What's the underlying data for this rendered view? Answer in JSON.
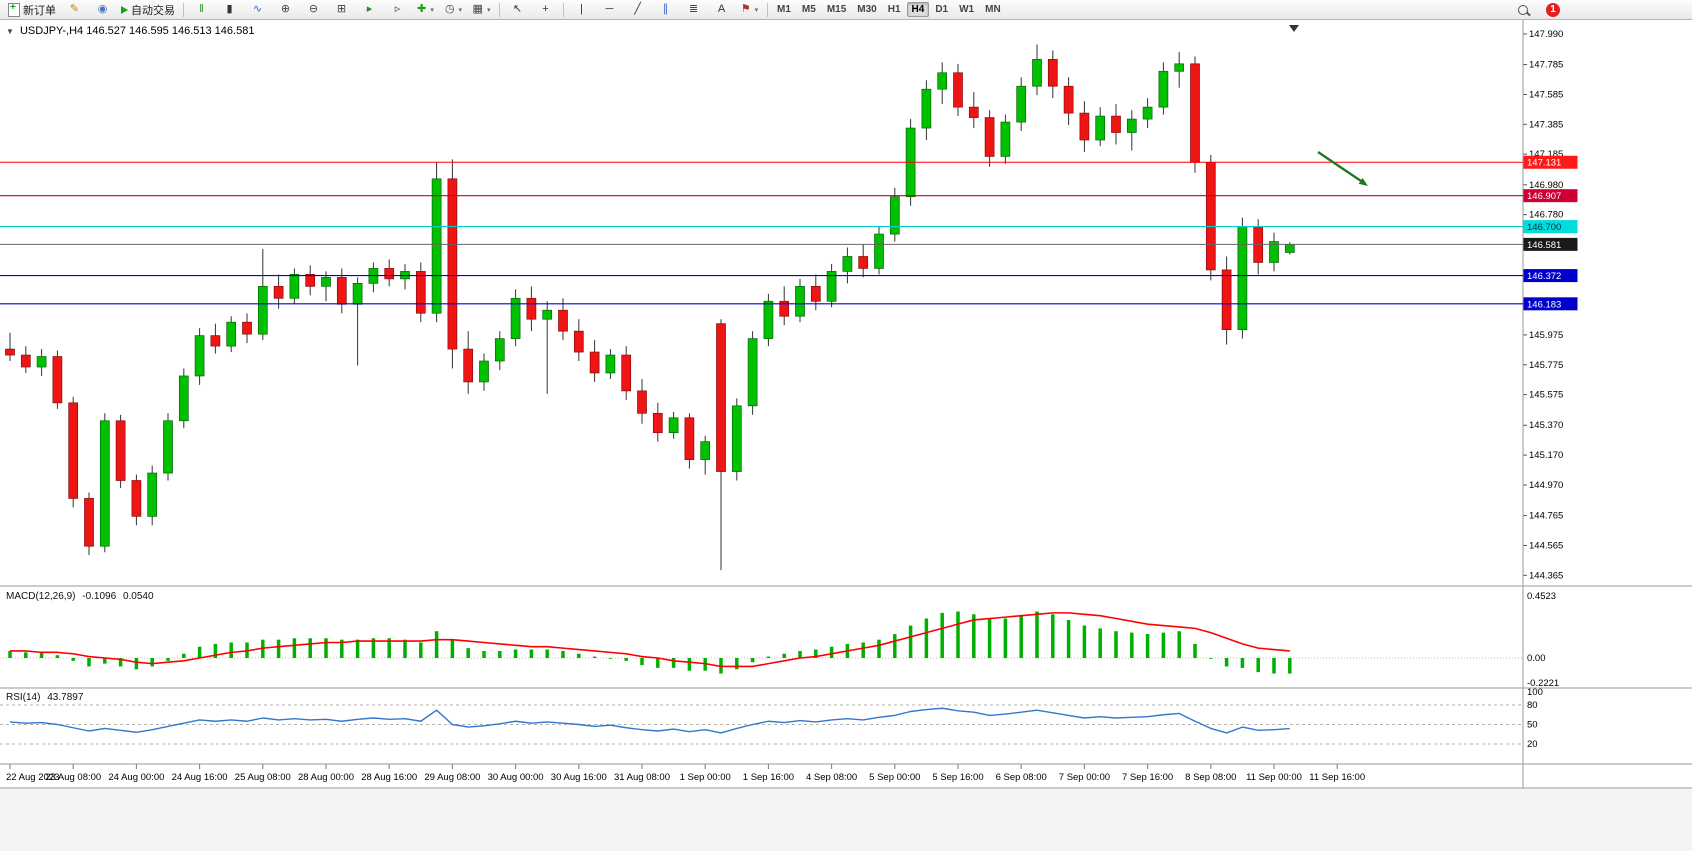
{
  "toolbar": {
    "items": [
      {
        "kind": "button",
        "name": "new-order-button",
        "icon": "doc",
        "label": "新订单"
      },
      {
        "kind": "button",
        "name": "metaeditor-button",
        "glyph": "✎",
        "color": "#b8860b"
      },
      {
        "kind": "button",
        "name": "community-button",
        "glyph": "◉",
        "color": "#4477bb"
      },
      {
        "kind": "button",
        "name": "auto-trading-button",
        "icon": "play",
        "label": "自动交易"
      },
      {
        "kind": "sep"
      },
      {
        "kind": "button",
        "name": "bar-chart-type-button",
        "glyph": "‖",
        "color": "#2a8a2a"
      },
      {
        "kind": "button",
        "name": "candlestick-chart-type-button",
        "glyph": "▮",
        "color": "#333333"
      },
      {
        "kind": "button",
        "name": "line-chart-type-button",
        "glyph": "∿",
        "color": "#3366cc"
      },
      {
        "kind": "button",
        "name": "zoom-in-button",
        "glyph": "⊕",
        "color": "#444444"
      },
      {
        "kind": "button",
        "name": "zoom-out-button",
        "glyph": "⊖",
        "color": "#444444"
      },
      {
        "kind": "button",
        "name": "tile-windows-button",
        "glyph": "⊞",
        "color": "#444444"
      },
      {
        "kind": "button",
        "name": "auto-scroll-button",
        "glyph": "▸",
        "color": "#2a8a2a"
      },
      {
        "kind": "button",
        "name": "chart-shift-button",
        "glyph": "▹",
        "color": "#444444"
      },
      {
        "kind": "button",
        "name": "indicators-button",
        "glyph": "✚",
        "color": "#18a018",
        "caret": true
      },
      {
        "kind": "button",
        "name": "periods-button",
        "glyph": "◷",
        "color": "#444444",
        "caret": true
      },
      {
        "kind": "button",
        "name": "templates-button",
        "glyph": "▦",
        "color": "#444444",
        "caret": true
      },
      {
        "kind": "sep"
      },
      {
        "kind": "button",
        "name": "cursor-button",
        "glyph": "↖",
        "color": "#333333"
      },
      {
        "kind": "button",
        "name": "crosshair-button",
        "glyph": "+",
        "color": "#333333"
      },
      {
        "kind": "sep"
      },
      {
        "kind": "button",
        "name": "vertical-line-button",
        "glyph": "|",
        "color": "#333333"
      },
      {
        "kind": "button",
        "name": "horizontal-line-button",
        "glyph": "─",
        "color": "#333333"
      },
      {
        "kind": "button",
        "name": "trendline-button",
        "glyph": "╱",
        "color": "#333333"
      },
      {
        "kind": "button",
        "name": "channel-button",
        "glyph": "∥",
        "color": "#3366cc"
      },
      {
        "kind": "button",
        "name": "fibonacci-button",
        "glyph": "≣",
        "color": "#333333"
      },
      {
        "kind": "button",
        "name": "text-button",
        "glyph": "A",
        "color": "#333333"
      },
      {
        "kind": "button",
        "name": "arrows-button",
        "glyph": "⚑",
        "color": "#aa3333",
        "caret": true
      },
      {
        "kind": "sep"
      }
    ],
    "timeframes": {
      "options": [
        "M1",
        "M5",
        "M15",
        "M30",
        "H1",
        "H4",
        "D1",
        "W1",
        "MN"
      ],
      "active": "H4"
    },
    "notifications": {
      "count": "1"
    }
  },
  "chart": {
    "title": {
      "dropdown_glyph": "▼",
      "symbol_period": "USDJPY-,H4",
      "ohlc": "146.527 146.595 146.513 146.581"
    },
    "price_axis_labels": [
      "147.990",
      "147.785",
      "147.585",
      "147.385",
      "147.185",
      "146.980",
      "146.780",
      "145.975",
      "145.775",
      "145.575",
      "145.370",
      "145.170",
      "144.970",
      "144.765",
      "144.565",
      "144.365"
    ],
    "hlines": [
      {
        "price": 147.131,
        "label": "147.131",
        "line": "#ff0000",
        "bg": "#ff1a1a",
        "fg": "#ffffff"
      },
      {
        "price": 146.907,
        "label": "146.907",
        "line": "#cc0022",
        "bg": "#cc0033",
        "fg": "#ffffff"
      },
      {
        "price": 146.7,
        "label": "146.700",
        "line": "#00cccc",
        "bg": "#00dddd",
        "fg": "#003333"
      },
      {
        "price": 146.581,
        "label": "146.581",
        "line": "#666666",
        "bg": "#1a1a1a",
        "fg": "#ffffff"
      },
      {
        "price": 146.372,
        "label": "146.372",
        "line": "#0000e6",
        "bg": "#0000cc",
        "fg": "#ffffff"
      },
      {
        "price": 146.183,
        "label": "146.183",
        "line": "#0000e6",
        "bg": "#0000cc",
        "fg": "#ffffff"
      }
    ],
    "colors": {
      "bull": "#00c000",
      "bull_stroke": "#076607",
      "bear": "#ef1515",
      "bear_stroke": "#8a0b0b",
      "wick": "#333333",
      "axis_text": "#000000",
      "separator": "#9a9a9a",
      "macd_hist": "#00b000",
      "macd_signal": "#ff0000",
      "rsi_line": "#3377cc",
      "arrow": "#1f7a1f"
    }
  },
  "panels": {
    "macd": {
      "label": "MACD(12,26,9)",
      "value_main": "-0.1096",
      "value_signal": "0.0540"
    },
    "rsi": {
      "label": "RSI(14)",
      "value": "43.7897"
    }
  },
  "chart_data": {
    "type": "candlestick",
    "symbol": "USDJPY-",
    "period": "H4",
    "ylim": [
      144.3,
      148.07
    ],
    "time_labels": [
      "22 Aug 2023",
      "23 Aug 08:00",
      "24 Aug 00:00",
      "24 Aug 16:00",
      "25 Aug 08:00",
      "28 Aug 00:00",
      "28 Aug 16:00",
      "29 Aug 08:00",
      "30 Aug 00:00",
      "30 Aug 16:00",
      "31 Aug 08:00",
      "1 Sep 00:00",
      "1 Sep 16:00",
      "4 Sep 08:00",
      "5 Sep 00:00",
      "5 Sep 16:00",
      "6 Sep 08:00",
      "7 Sep 00:00",
      "7 Sep 16:00",
      "8 Sep 08:00",
      "11 Sep 00:00",
      "11 Sep 16:00"
    ],
    "label_every_n_bars": 4,
    "ohlc": [
      [
        145.88,
        145.99,
        145.8,
        145.84
      ],
      [
        145.84,
        145.9,
        145.72,
        145.76
      ],
      [
        145.76,
        145.88,
        145.7,
        145.83
      ],
      [
        145.83,
        145.87,
        145.48,
        145.52
      ],
      [
        145.52,
        145.56,
        144.82,
        144.88
      ],
      [
        144.88,
        144.92,
        144.5,
        144.56
      ],
      [
        144.56,
        145.45,
        144.52,
        145.4
      ],
      [
        145.4,
        145.44,
        144.95,
        145.0
      ],
      [
        145.0,
        145.04,
        144.7,
        144.76
      ],
      [
        144.76,
        145.1,
        144.7,
        145.05
      ],
      [
        145.05,
        145.45,
        145.0,
        145.4
      ],
      [
        145.4,
        145.75,
        145.35,
        145.7
      ],
      [
        145.7,
        146.02,
        145.64,
        145.97
      ],
      [
        145.97,
        146.05,
        145.85,
        145.9
      ],
      [
        145.9,
        146.1,
        145.86,
        146.06
      ],
      [
        146.06,
        146.12,
        145.92,
        145.98
      ],
      [
        145.98,
        146.55,
        145.94,
        146.3
      ],
      [
        146.3,
        146.38,
        146.15,
        146.22
      ],
      [
        146.22,
        146.42,
        146.18,
        146.38
      ],
      [
        146.38,
        146.44,
        146.24,
        146.3
      ],
      [
        146.3,
        146.4,
        146.2,
        146.36
      ],
      [
        146.36,
        146.42,
        146.12,
        146.18
      ],
      [
        146.18,
        146.36,
        145.77,
        146.32
      ],
      [
        146.32,
        146.46,
        146.26,
        146.42
      ],
      [
        146.42,
        146.48,
        146.3,
        146.35
      ],
      [
        146.35,
        146.45,
        146.28,
        146.4
      ],
      [
        146.4,
        146.46,
        146.06,
        146.12
      ],
      [
        146.12,
        147.131,
        146.06,
        147.02
      ],
      [
        147.02,
        147.15,
        145.75,
        145.88
      ],
      [
        145.88,
        146.0,
        145.58,
        145.66
      ],
      [
        145.66,
        145.85,
        145.6,
        145.8
      ],
      [
        145.8,
        146.0,
        145.74,
        145.95
      ],
      [
        145.95,
        146.28,
        145.9,
        146.22
      ],
      [
        146.22,
        146.3,
        146.0,
        146.08
      ],
      [
        146.08,
        146.2,
        145.58,
        146.14
      ],
      [
        146.14,
        146.22,
        145.94,
        146.0
      ],
      [
        146.0,
        146.08,
        145.8,
        145.86
      ],
      [
        145.86,
        145.94,
        145.66,
        145.72
      ],
      [
        145.72,
        145.88,
        145.68,
        145.84
      ],
      [
        145.84,
        145.9,
        145.54,
        145.6
      ],
      [
        145.6,
        145.68,
        145.38,
        145.45
      ],
      [
        145.45,
        145.52,
        145.26,
        145.32
      ],
      [
        145.32,
        145.46,
        145.28,
        145.42
      ],
      [
        145.42,
        145.45,
        145.08,
        145.14
      ],
      [
        145.14,
        145.3,
        145.04,
        145.26
      ],
      [
        146.05,
        146.08,
        144.4,
        145.06
      ],
      [
        145.06,
        145.55,
        145.0,
        145.5
      ],
      [
        145.5,
        146.0,
        145.44,
        145.95
      ],
      [
        145.95,
        146.25,
        145.9,
        146.2
      ],
      [
        146.2,
        146.3,
        146.04,
        146.1
      ],
      [
        146.1,
        146.35,
        146.06,
        146.3
      ],
      [
        146.3,
        146.38,
        146.14,
        146.2
      ],
      [
        146.2,
        146.45,
        146.16,
        146.4
      ],
      [
        146.4,
        146.56,
        146.32,
        146.5
      ],
      [
        146.5,
        146.58,
        146.36,
        146.42
      ],
      [
        146.42,
        146.7,
        146.38,
        146.65
      ],
      [
        146.65,
        146.96,
        146.6,
        146.9
      ],
      [
        146.9,
        147.42,
        146.84,
        147.36
      ],
      [
        147.36,
        147.68,
        147.28,
        147.62
      ],
      [
        147.62,
        147.8,
        147.52,
        147.73
      ],
      [
        147.73,
        147.79,
        147.44,
        147.5
      ],
      [
        147.5,
        147.6,
        147.36,
        147.43
      ],
      [
        147.43,
        147.48,
        147.1,
        147.17
      ],
      [
        147.17,
        147.45,
        147.12,
        147.4
      ],
      [
        147.4,
        147.7,
        147.34,
        147.64
      ],
      [
        147.64,
        147.92,
        147.58,
        147.82
      ],
      [
        147.82,
        147.88,
        147.56,
        147.64
      ],
      [
        147.64,
        147.7,
        147.38,
        147.46
      ],
      [
        147.46,
        147.54,
        147.2,
        147.28
      ],
      [
        147.28,
        147.5,
        147.24,
        147.44
      ],
      [
        147.44,
        147.52,
        147.25,
        147.33
      ],
      [
        147.33,
        147.48,
        147.21,
        147.42
      ],
      [
        147.42,
        147.56,
        147.36,
        147.5
      ],
      [
        147.5,
        147.8,
        147.45,
        147.74
      ],
      [
        147.74,
        147.87,
        147.63,
        147.79
      ],
      [
        147.79,
        147.84,
        147.06,
        147.13
      ],
      [
        147.13,
        147.18,
        146.34,
        146.41
      ],
      [
        146.41,
        146.5,
        145.91,
        146.01
      ],
      [
        146.01,
        146.76,
        145.95,
        146.7
      ],
      [
        146.7,
        146.75,
        146.38,
        146.46
      ],
      [
        146.46,
        146.66,
        146.4,
        146.6
      ],
      [
        146.527,
        146.595,
        146.513,
        146.581
      ]
    ],
    "indicators": {
      "macd": {
        "params": "12,26,9",
        "scale_labels": [
          "0.4523",
          "0.00",
          "-0.2221"
        ],
        "histogram": [
          0.05,
          0.04,
          0.04,
          0.02,
          -0.02,
          -0.06,
          -0.04,
          -0.06,
          -0.08,
          -0.06,
          -0.02,
          0.03,
          0.08,
          0.1,
          0.11,
          0.11,
          0.13,
          0.13,
          0.14,
          0.14,
          0.14,
          0.13,
          0.13,
          0.14,
          0.14,
          0.13,
          0.11,
          0.19,
          0.13,
          0.07,
          0.05,
          0.05,
          0.06,
          0.06,
          0.06,
          0.05,
          0.03,
          0.01,
          0.0,
          -0.02,
          -0.05,
          -0.07,
          -0.07,
          -0.09,
          -0.09,
          -0.11,
          -0.08,
          -0.03,
          0.01,
          0.03,
          0.05,
          0.06,
          0.08,
          0.1,
          0.11,
          0.13,
          0.17,
          0.23,
          0.28,
          0.32,
          0.33,
          0.31,
          0.28,
          0.28,
          0.3,
          0.33,
          0.31,
          0.27,
          0.23,
          0.21,
          0.19,
          0.18,
          0.17,
          0.18,
          0.19,
          0.1,
          0.0,
          -0.06,
          -0.07,
          -0.1,
          -0.11,
          -0.11
        ],
        "signal": [
          0.05,
          0.05,
          0.04,
          0.04,
          0.03,
          0.01,
          0.0,
          -0.01,
          -0.03,
          -0.04,
          -0.03,
          -0.02,
          0.0,
          0.02,
          0.04,
          0.05,
          0.07,
          0.08,
          0.09,
          0.1,
          0.11,
          0.11,
          0.12,
          0.12,
          0.12,
          0.12,
          0.12,
          0.13,
          0.13,
          0.12,
          0.11,
          0.1,
          0.09,
          0.08,
          0.08,
          0.07,
          0.06,
          0.05,
          0.04,
          0.03,
          0.01,
          0.0,
          -0.02,
          -0.03,
          -0.04,
          -0.06,
          -0.06,
          -0.06,
          -0.04,
          -0.02,
          0.0,
          0.01,
          0.03,
          0.05,
          0.07,
          0.09,
          0.12,
          0.15,
          0.18,
          0.21,
          0.24,
          0.27,
          0.28,
          0.29,
          0.3,
          0.31,
          0.32,
          0.32,
          0.31,
          0.3,
          0.28,
          0.26,
          0.24,
          0.23,
          0.22,
          0.21,
          0.18,
          0.14,
          0.1,
          0.07,
          0.06,
          0.05
        ]
      },
      "rsi": {
        "params": "14",
        "scale_labels": [
          "100",
          "80",
          "50",
          "20"
        ],
        "levels": [
          80,
          50,
          20
        ],
        "values": [
          54,
          52,
          53,
          50,
          45,
          40,
          44,
          41,
          38,
          42,
          47,
          52,
          57,
          55,
          57,
          55,
          60,
          57,
          59,
          57,
          58,
          55,
          58,
          60,
          58,
          59,
          55,
          72,
          50,
          46,
          48,
          51,
          55,
          52,
          54,
          52,
          50,
          47,
          49,
          45,
          42,
          40,
          43,
          39,
          42,
          37,
          44,
          50,
          55,
          53,
          56,
          54,
          57,
          59,
          57,
          61,
          64,
          70,
          73,
          75,
          71,
          69,
          64,
          66,
          69,
          72,
          68,
          64,
          60,
          62,
          60,
          61,
          62,
          65,
          67,
          55,
          44,
          37,
          46,
          41,
          42,
          43.79
        ]
      }
    }
  }
}
